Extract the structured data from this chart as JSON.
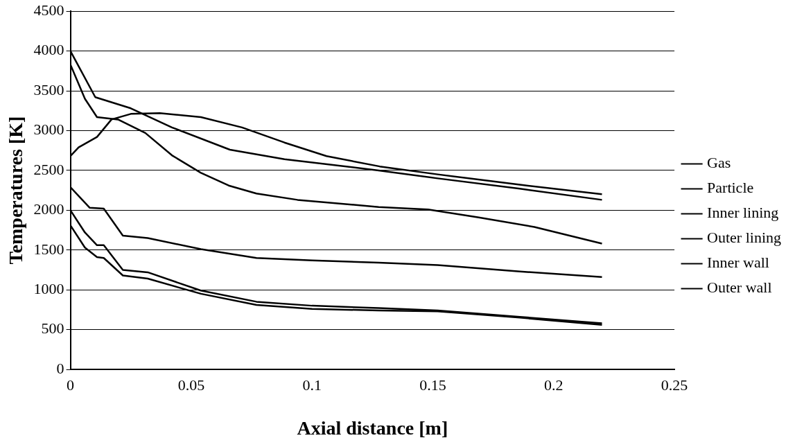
{
  "chart_data": {
    "type": "line",
    "xlabel": "Axial distance [m]",
    "ylabel": "Temperatures [K]",
    "xlim": [
      0,
      0.25
    ],
    "xticks": [
      0,
      0.05,
      0.1,
      0.15,
      0.2,
      0.25
    ],
    "ylim": [
      0,
      4500
    ],
    "yticks": [
      0,
      500,
      1000,
      1500,
      2000,
      2500,
      3000,
      3500,
      4000,
      4500
    ],
    "grid": "y",
    "legend": "right",
    "marker": "none",
    "line_style": "solid",
    "series": [
      {
        "name": "Gas",
        "color": "#000000",
        "x": [
          0,
          0.0103,
          0.025,
          0.042,
          0.066,
          0.0886,
          0.1276,
          0.152,
          0.186,
          0.22
        ],
        "values": [
          4000,
          3420,
          3280,
          3040,
          2760,
          2640,
          2500,
          2400,
          2270,
          2130
        ]
      },
      {
        "name": "Particle",
        "color": "#000000",
        "x": [
          0,
          0.0034,
          0.011,
          0.017,
          0.025,
          0.037,
          0.054,
          0.071,
          0.0886,
          0.106,
          0.128,
          0.152,
          0.186,
          0.22
        ],
        "values": [
          2680,
          2790,
          2920,
          3140,
          3210,
          3220,
          3170,
          3040,
          2850,
          2680,
          2550,
          2450,
          2320,
          2200
        ]
      },
      {
        "name": "Inner lining",
        "color": "#000000",
        "x": [
          0,
          0.006,
          0.011,
          0.0197,
          0.031,
          0.042,
          0.054,
          0.0655,
          0.077,
          0.094,
          0.1276,
          0.148,
          0.169,
          0.192,
          0.22
        ],
        "values": [
          3830,
          3400,
          3170,
          3140,
          2970,
          2690,
          2470,
          2310,
          2210,
          2130,
          2040,
          2010,
          1910,
          1790,
          1580
        ]
      },
      {
        "name": "Outer lining",
        "color": "#000000",
        "x": [
          0,
          0.008,
          0.0138,
          0.0217,
          0.032,
          0.054,
          0.077,
          0.1,
          0.1276,
          0.152,
          0.186,
          0.22
        ],
        "values": [
          2290,
          2030,
          2020,
          1680,
          1650,
          1510,
          1400,
          1370,
          1340,
          1310,
          1230,
          1160
        ]
      },
      {
        "name": "Inner wall",
        "color": "#000000",
        "x": [
          0,
          0.006,
          0.011,
          0.0138,
          0.0217,
          0.032,
          0.054,
          0.077,
          0.1,
          0.1276,
          0.152,
          0.186,
          0.22
        ],
        "values": [
          2000,
          1720,
          1560,
          1560,
          1250,
          1220,
          990,
          850,
          800,
          770,
          740,
          660,
          580
        ]
      },
      {
        "name": "Outer wall",
        "color": "#000000",
        "x": [
          0,
          0.006,
          0.011,
          0.0138,
          0.0217,
          0.032,
          0.054,
          0.077,
          0.1,
          0.1276,
          0.152,
          0.186,
          0.22
        ],
        "values": [
          1810,
          1530,
          1410,
          1400,
          1180,
          1140,
          950,
          810,
          760,
          740,
          730,
          650,
          560
        ]
      }
    ]
  }
}
